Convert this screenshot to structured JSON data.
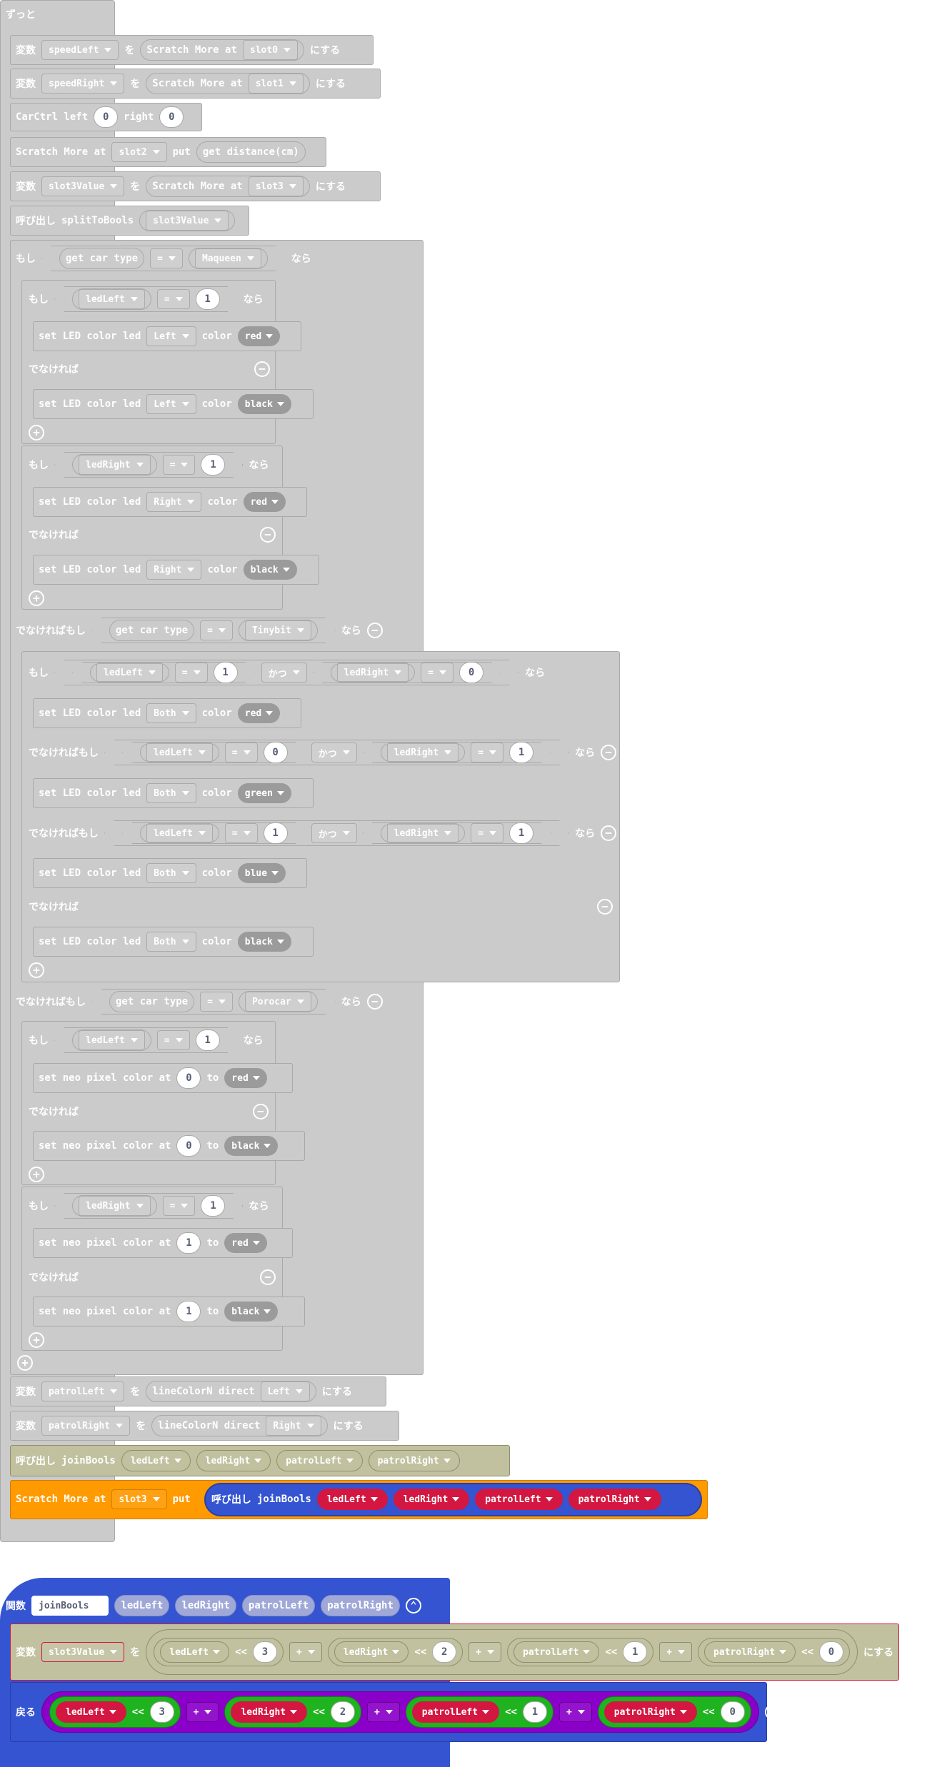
{
  "kw": {
    "forever": "ずっと",
    "var": "変数",
    "wo": "を",
    "nisuru": "にする",
    "call": "呼び出し",
    "if": "もし",
    "then": "なら",
    "else": "でなければ",
    "elseif": "でなければもし",
    "and": "かつ",
    "function": "関数",
    "return": "戻る"
  },
  "blocks": {
    "scratch_more_at": "Scratch More at",
    "put": "put",
    "get_distance": "get distance(cm)",
    "carctrl_left": "CarCtrl left",
    "right": "right",
    "get_car_type": "get car type",
    "set_led": "set LED color led",
    "color": "color",
    "set_neo": "set neo pixel color at",
    "to": "to",
    "line_color": "lineColorN direct",
    "shift": "<<",
    "plus": "+",
    "eq": "="
  },
  "vars": {
    "speedLeft": "speedLeft",
    "speedRight": "speedRight",
    "slot3Value": "slot3Value",
    "ledLeft": "ledLeft",
    "ledRight": "ledRight",
    "patrolLeft": "patrolLeft",
    "patrolRight": "patrolRight"
  },
  "slots": {
    "s0": "slot0",
    "s1": "slot1",
    "s2": "slot2",
    "s3": "slot3"
  },
  "funcs": {
    "split": "splitToBools",
    "join": "joinBools"
  },
  "cars": {
    "maqueen": "Maqueen",
    "tinybit": "Tinybit",
    "porocar": "Porocar"
  },
  "dirs": {
    "left": "Left",
    "right": "Right",
    "both": "Both"
  },
  "colors_txt": {
    "red": "red",
    "black": "black",
    "green": "green",
    "blue": "blue"
  },
  "nums": {
    "n0": "0",
    "n1": "1",
    "n2": "2",
    "n3": "3"
  },
  "palette": {
    "disabled": "#cbcbcb",
    "orange": "#ff9a00",
    "blue": "#3454d1",
    "purple": "#8a00c8",
    "green": "#1fb31f",
    "red": "#d31741",
    "olive": "#c1c1a0"
  }
}
